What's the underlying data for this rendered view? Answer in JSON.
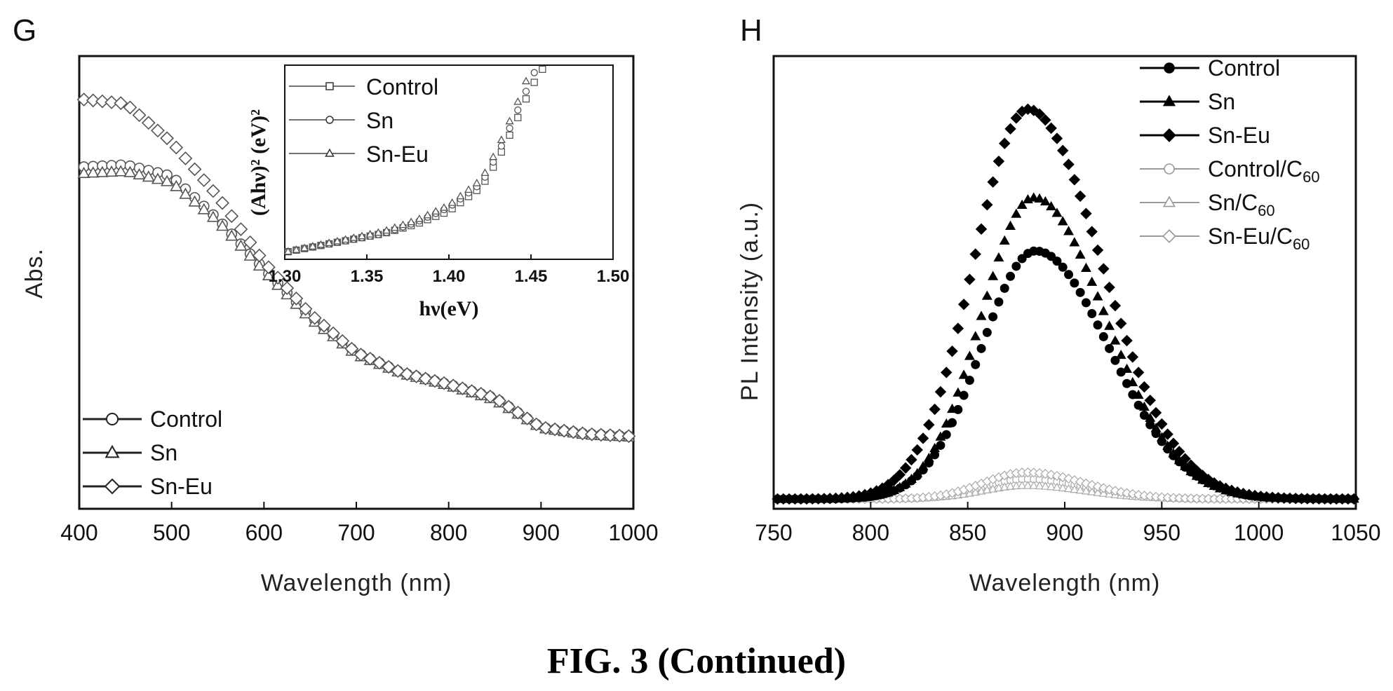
{
  "caption": "FIG. 3 (Continued)",
  "chart_data": [
    {
      "panel": "G",
      "type": "scatter",
      "xlabel": "Wavelength (nm)",
      "ylabel": "Abs.",
      "xlim": [
        400,
        1000
      ],
      "xticks": [
        "400",
        "500",
        "600",
        "700",
        "800",
        "900",
        "1000"
      ],
      "ylim": [
        0,
        1
      ],
      "legend_position": "bottom-left",
      "series": [
        {
          "name": "Control",
          "marker": "circle",
          "x": [
            400,
            450,
            500,
            550,
            600,
            650,
            700,
            750,
            800,
            850,
            900,
            950,
            1000
          ],
          "y": [
            0.755,
            0.76,
            0.735,
            0.64,
            0.53,
            0.425,
            0.345,
            0.3,
            0.275,
            0.245,
            0.18,
            0.165,
            0.16
          ]
        },
        {
          "name": "Sn",
          "marker": "triangle",
          "x": [
            400,
            450,
            500,
            550,
            600,
            650,
            700,
            750,
            800,
            850,
            900,
            950,
            1000
          ],
          "y": [
            0.74,
            0.745,
            0.72,
            0.635,
            0.525,
            0.42,
            0.34,
            0.298,
            0.272,
            0.24,
            0.178,
            0.163,
            0.158
          ]
        },
        {
          "name": "Sn-Eu",
          "marker": "diamond",
          "x": [
            400,
            450,
            500,
            550,
            600,
            650,
            700,
            750,
            800,
            850,
            900,
            950,
            1000
          ],
          "y": [
            0.905,
            0.895,
            0.81,
            0.69,
            0.545,
            0.43,
            0.345,
            0.3,
            0.275,
            0.245,
            0.18,
            0.165,
            0.16
          ]
        }
      ],
      "inset": {
        "type": "scatter",
        "xlabel": "hν(eV)",
        "ylabel": "(Ahν)² (eV)²",
        "xlim": [
          1.3,
          1.5
        ],
        "xticks": [
          "1.30",
          "1.35",
          "1.40",
          "1.45",
          "1.50"
        ],
        "legend_position": "top-left",
        "series": [
          {
            "name": "Control",
            "marker": "square",
            "x": [
              1.3,
              1.33,
              1.36,
              1.38,
              1.4,
              1.42,
              1.43,
              1.44,
              1.45,
              1.46
            ],
            "y": [
              0.0,
              0.05,
              0.1,
              0.15,
              0.22,
              0.35,
              0.5,
              0.68,
              0.88,
              1.02
            ]
          },
          {
            "name": "Sn",
            "marker": "circle",
            "x": [
              1.3,
              1.33,
              1.36,
              1.38,
              1.4,
              1.42,
              1.43,
              1.44,
              1.45,
              1.455
            ],
            "y": [
              0.0,
              0.05,
              0.1,
              0.16,
              0.24,
              0.37,
              0.53,
              0.72,
              0.92,
              1.02
            ]
          },
          {
            "name": "Sn-Eu",
            "marker": "triangle",
            "x": [
              1.3,
              1.33,
              1.36,
              1.38,
              1.4,
              1.42,
              1.43,
              1.44,
              1.45
            ],
            "y": [
              0.0,
              0.055,
              0.11,
              0.17,
              0.25,
              0.39,
              0.56,
              0.76,
              0.98
            ]
          }
        ]
      }
    },
    {
      "panel": "H",
      "type": "scatter",
      "xlabel": "Wavelength (nm)",
      "ylabel": "PL Intensity (a.u.)",
      "xlim": [
        750,
        1050
      ],
      "xticks": [
        "750",
        "800",
        "850",
        "900",
        "950",
        "1000",
        "1050"
      ],
      "ylim": [
        0,
        1
      ],
      "legend_position": "top-right",
      "series": [
        {
          "name": "Control",
          "sub": "",
          "marker": "circle",
          "filled": true,
          "peak_nm": 885,
          "peak": 0.56,
          "sigma_left": 28,
          "sigma_right": 38
        },
        {
          "name": "Sn",
          "sub": "",
          "marker": "triangle",
          "filled": true,
          "peak_nm": 884,
          "peak": 0.68,
          "sigma_left": 27,
          "sigma_right": 37
        },
        {
          "name": "Sn-Eu",
          "sub": "",
          "marker": "diamond",
          "filled": true,
          "peak_nm": 881,
          "peak": 0.88,
          "sigma_left": 28,
          "sigma_right": 38
        },
        {
          "name": "Control/C",
          "sub": "60",
          "marker": "circle",
          "filled": false,
          "peak_nm": 880,
          "peak": 0.045,
          "sigma_left": 22,
          "sigma_right": 30
        },
        {
          "name": "Sn/C",
          "sub": "60",
          "marker": "triangle",
          "filled": false,
          "peak_nm": 880,
          "peak": 0.03,
          "sigma_left": 22,
          "sigma_right": 30
        },
        {
          "name": "Sn-Eu/C",
          "sub": "60",
          "marker": "diamond",
          "filled": false,
          "peak_nm": 880,
          "peak": 0.06,
          "sigma_left": 22,
          "sigma_right": 30
        }
      ]
    }
  ]
}
